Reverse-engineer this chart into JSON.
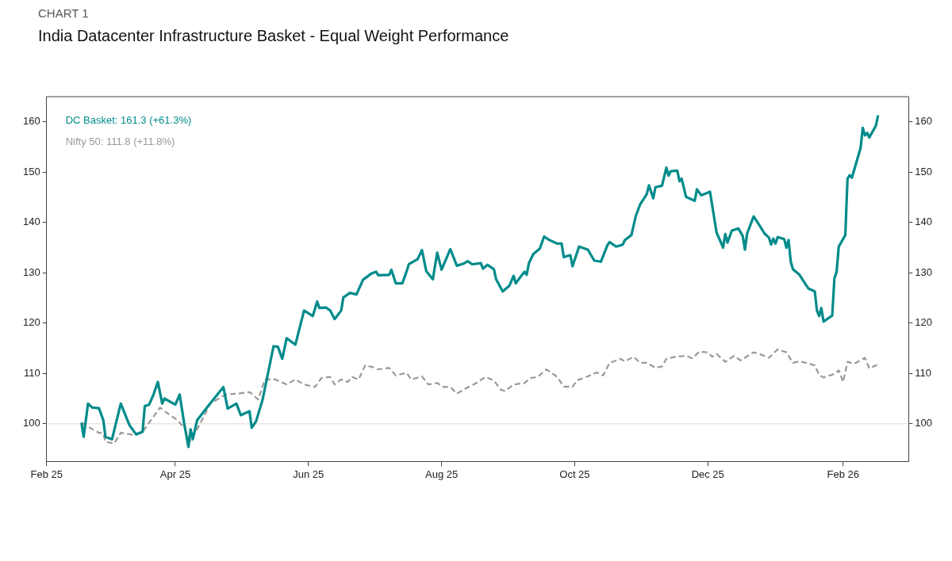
{
  "chart_data": {
    "type": "line",
    "subtitle": "CHART 1",
    "title": "India Datacenter Infrastructure Basket - Equal Weight Performance",
    "xlim": [
      "2025-02-01",
      "2026-03-03"
    ],
    "xticks": [
      {
        "value": "2025-02-01",
        "label": "Feb 25"
      },
      {
        "value": "2025-04-01",
        "label": "Apr 25"
      },
      {
        "value": "2025-06-01",
        "label": "Jun 25"
      },
      {
        "value": "2025-08-01",
        "label": "Aug 25"
      },
      {
        "value": "2025-10-01",
        "label": "Oct 25"
      },
      {
        "value": "2025-12-01",
        "label": "Dec 25"
      },
      {
        "value": "2026-02-01",
        "label": "Feb 26"
      }
    ],
    "ylim": [
      92.5,
      165
    ],
    "yticks": [
      100,
      110,
      120,
      130,
      140,
      150,
      160
    ],
    "y2lim": [
      92.5,
      165
    ],
    "y2ticks": [
      100,
      110,
      120,
      130,
      140,
      150,
      160
    ],
    "grid": false,
    "legend": "top left",
    "marker": "none",
    "ref_lines": [
      {
        "axis": "y",
        "value": 100,
        "color": "#dddddd"
      }
    ],
    "series": [
      {
        "name": "DC Basket: 161.3 (+61.3%)",
        "color": "#008b8b",
        "line_style": "solid",
        "x": [
          "2025-02-17",
          "2025-02-18",
          "2025-02-20",
          "2025-02-22",
          "2025-02-25",
          "2025-02-27",
          "2025-02-28",
          "2025-03-03",
          "2025-03-07",
          "2025-03-11",
          "2025-03-14",
          "2025-03-17",
          "2025-03-18",
          "2025-03-20",
          "2025-03-22",
          "2025-03-24",
          "2025-03-26",
          "2025-03-27",
          "2025-04-01",
          "2025-04-03",
          "2025-04-05",
          "2025-04-07",
          "2025-04-08",
          "2025-04-09",
          "2025-04-11",
          "2025-04-16",
          "2025-04-23",
          "2025-04-25",
          "2025-04-29",
          "2025-05-01",
          "2025-05-05",
          "2025-05-06",
          "2025-05-08",
          "2025-05-11",
          "2025-05-16",
          "2025-05-18",
          "2025-05-20",
          "2025-05-22",
          "2025-05-26",
          "2025-05-30",
          "2025-06-03",
          "2025-06-05",
          "2025-06-06",
          "2025-06-09",
          "2025-06-11",
          "2025-06-13",
          "2025-06-16",
          "2025-06-17",
          "2025-06-20",
          "2025-06-23",
          "2025-06-26",
          "2025-06-30",
          "2025-07-02",
          "2025-07-03",
          "2025-07-08",
          "2025-07-09",
          "2025-07-11",
          "2025-07-14",
          "2025-07-16",
          "2025-07-17",
          "2025-07-21",
          "2025-07-23",
          "2025-07-25",
          "2025-07-28",
          "2025-07-30",
          "2025-08-01",
          "2025-08-05",
          "2025-08-08",
          "2025-08-11",
          "2025-08-13",
          "2025-08-15",
          "2025-08-19",
          "2025-08-20",
          "2025-08-22",
          "2025-08-25",
          "2025-08-26",
          "2025-08-29",
          "2025-09-01",
          "2025-09-03",
          "2025-09-04",
          "2025-09-06",
          "2025-09-08",
          "2025-09-09",
          "2025-09-10",
          "2025-09-12",
          "2025-09-15",
          "2025-09-17",
          "2025-09-19",
          "2025-09-23",
          "2025-09-25",
          "2025-09-26",
          "2025-09-29",
          "2025-09-30",
          "2025-10-03",
          "2025-10-07",
          "2025-10-10",
          "2025-10-13",
          "2025-10-16",
          "2025-10-17",
          "2025-10-20",
          "2025-10-23",
          "2025-10-24",
          "2025-10-27",
          "2025-10-29",
          "2025-10-31",
          "2025-11-03",
          "2025-11-04",
          "2025-11-06",
          "2025-11-07",
          "2025-11-10",
          "2025-11-12",
          "2025-11-13",
          "2025-11-14",
          "2025-11-17",
          "2025-11-18",
          "2025-11-19",
          "2025-11-21",
          "2025-11-25",
          "2025-11-26",
          "2025-11-28",
          "2025-12-02",
          "2025-12-03",
          "2025-12-05",
          "2025-12-08",
          "2025-12-09",
          "2025-12-10",
          "2025-12-12",
          "2025-12-15",
          "2025-12-17",
          "2025-12-18",
          "2025-12-19",
          "2025-12-22",
          "2025-12-25",
          "2025-12-27",
          "2025-12-29",
          "2025-12-30",
          "2025-12-31",
          "2026-01-01",
          "2026-01-02",
          "2026-01-05",
          "2026-01-06",
          "2026-01-07",
          "2026-01-08",
          "2026-01-09",
          "2026-01-12",
          "2026-01-16",
          "2026-01-19",
          "2026-01-20",
          "2026-01-21",
          "2026-01-22",
          "2026-01-23",
          "2026-01-27",
          "2026-01-28",
          "2026-01-29",
          "2026-01-30",
          "2026-02-02",
          "2026-02-03",
          "2026-02-04",
          "2026-02-05",
          "2026-02-09",
          "2026-02-10",
          "2026-02-11",
          "2026-02-12",
          "2026-02-13",
          "2026-02-16",
          "2026-02-17"
        ],
        "values": [
          100.2,
          97.4,
          104.0,
          103.2,
          103.1,
          100.7,
          97.4,
          96.9,
          104.0,
          99.7,
          97.9,
          98.4,
          103.5,
          103.8,
          105.8,
          108.3,
          104.0,
          105.0,
          103.8,
          105.8,
          100.2,
          95.4,
          98.9,
          96.9,
          100.7,
          103.5,
          107.3,
          103.0,
          104.0,
          101.7,
          102.5,
          99.2,
          100.5,
          104.8,
          115.4,
          115.3,
          112.9,
          117.0,
          115.7,
          122.5,
          121.4,
          124.3,
          123.0,
          123.1,
          122.5,
          120.8,
          122.5,
          125.1,
          126.0,
          125.7,
          128.6,
          129.9,
          130.2,
          129.5,
          129.6,
          130.6,
          127.9,
          127.9,
          130.3,
          131.7,
          132.7,
          134.5,
          130.3,
          128.7,
          134.0,
          130.6,
          134.7,
          131.4,
          131.8,
          132.3,
          131.7,
          131.9,
          130.8,
          131.6,
          130.7,
          128.7,
          126.3,
          127.4,
          129.4,
          127.9,
          129.1,
          130.2,
          129.6,
          131.9,
          133.7,
          134.8,
          137.2,
          136.6,
          135.8,
          135.8,
          133.1,
          133.5,
          131.3,
          135.2,
          134.6,
          132.4,
          132.2,
          135.5,
          136.1,
          135.2,
          135.6,
          136.5,
          137.5,
          141.3,
          143.6,
          145.6,
          147.4,
          144.8,
          147.0,
          147.3,
          150.9,
          149.3,
          150.2,
          150.3,
          148.2,
          148.7,
          145.1,
          144.3,
          146.6,
          145.4,
          146.1,
          143.4,
          138.0,
          135.0,
          137.7,
          136.0,
          138.4,
          138.8,
          137.3,
          134.6,
          137.8,
          141.2,
          139.2,
          137.8,
          137.0,
          135.6,
          136.8,
          135.8,
          137.1,
          136.7,
          135.0,
          136.5,
          132.2,
          130.7,
          129.6,
          126.9,
          126.3,
          122.5,
          121.4,
          123.0,
          120.3,
          121.5,
          128.9,
          130.2,
          135.2,
          137.5,
          148.7,
          149.4,
          148.9,
          154.8,
          158.8,
          157.3,
          157.8,
          156.9,
          159.2,
          161.3
        ]
      },
      {
        "name": "Nifty 50: 111.8 (+11.8%)",
        "color": "#999999",
        "line_style": "dashed",
        "x": [
          "2025-02-17",
          "2025-02-20",
          "2025-02-25",
          "2025-02-27",
          "2025-02-28",
          "2025-03-04",
          "2025-03-07",
          "2025-03-14",
          "2025-03-17",
          "2025-03-25",
          "2025-03-27",
          "2025-04-02",
          "2025-04-05",
          "2025-04-08",
          "2025-04-12",
          "2025-04-17",
          "2025-04-24",
          "2025-04-30",
          "2025-05-05",
          "2025-05-09",
          "2025-05-12",
          "2025-05-17",
          "2025-05-22",
          "2025-05-26",
          "2025-05-30",
          "2025-06-04",
          "2025-06-07",
          "2025-06-11",
          "2025-06-13",
          "2025-06-16",
          "2025-06-19",
          "2025-06-21",
          "2025-06-24",
          "2025-06-27",
          "2025-06-30",
          "2025-07-03",
          "2025-07-08",
          "2025-07-11",
          "2025-07-16",
          "2025-07-18",
          "2025-07-23",
          "2025-07-26",
          "2025-07-30",
          "2025-08-02",
          "2025-08-05",
          "2025-08-08",
          "2025-08-12",
          "2025-08-17",
          "2025-08-21",
          "2025-08-25",
          "2025-08-28",
          "2025-08-30",
          "2025-09-03",
          "2025-09-08",
          "2025-09-11",
          "2025-09-14",
          "2025-09-18",
          "2025-09-23",
          "2025-09-26",
          "2025-09-30",
          "2025-10-02",
          "2025-10-07",
          "2025-10-11",
          "2025-10-14",
          "2025-10-17",
          "2025-10-22",
          "2025-10-24",
          "2025-10-28",
          "2025-10-31",
          "2025-11-03",
          "2025-11-07",
          "2025-11-10",
          "2025-11-12",
          "2025-11-16",
          "2025-11-21",
          "2025-11-24",
          "2025-11-27",
          "2025-12-01",
          "2025-12-03",
          "2025-12-05",
          "2025-12-09",
          "2025-12-13",
          "2025-12-16",
          "2025-12-22",
          "2025-12-25",
          "2025-12-29",
          "2026-01-02",
          "2026-01-06",
          "2026-01-09",
          "2026-01-12",
          "2026-01-16",
          "2026-01-19",
          "2026-01-21",
          "2026-01-23",
          "2026-01-28",
          "2026-01-30",
          "2026-02-01",
          "2026-02-03",
          "2026-02-06",
          "2026-02-11",
          "2026-02-13",
          "2026-02-17"
        ],
        "values": [
          100.2,
          99.4,
          98.2,
          98.1,
          96.4,
          96.1,
          98.2,
          97.7,
          98.4,
          103.2,
          102.5,
          100.7,
          99.2,
          96.6,
          99.7,
          104.0,
          105.8,
          106.0,
          106.3,
          104.8,
          108.8,
          108.8,
          107.8,
          108.8,
          107.8,
          107.3,
          109.1,
          109.3,
          107.8,
          108.8,
          108.3,
          109.3,
          108.8,
          111.6,
          111.3,
          110.8,
          111.1,
          109.6,
          110.1,
          108.8,
          109.4,
          107.8,
          108.1,
          107.3,
          107.3,
          106.0,
          107.0,
          108.1,
          109.3,
          108.6,
          106.8,
          106.5,
          107.8,
          108.1,
          109.1,
          109.3,
          110.8,
          109.3,
          107.4,
          107.3,
          108.6,
          109.4,
          110.2,
          109.6,
          112.1,
          112.9,
          112.4,
          113.3,
          112.1,
          112.1,
          111.1,
          111.4,
          112.9,
          113.3,
          113.5,
          113.0,
          114.3,
          114.2,
          113.3,
          113.9,
          112.3,
          113.5,
          112.6,
          114.2,
          113.8,
          113.1,
          114.8,
          114.2,
          112.1,
          112.4,
          112.0,
          111.6,
          109.7,
          109.2,
          109.9,
          110.6,
          108.3,
          112.3,
          111.9,
          113.1,
          111.0,
          111.8
        ]
      }
    ]
  }
}
